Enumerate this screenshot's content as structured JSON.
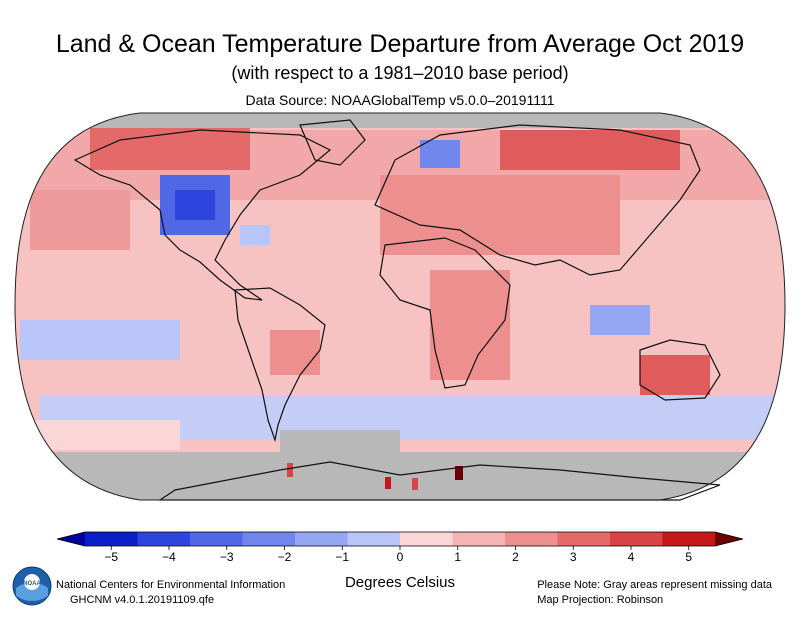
{
  "header": {
    "title": "Land & Ocean Temperature Departure from Average Oct 2019",
    "subtitle": "(with respect to a 1981–2010 base period)",
    "source": "Data Source: NOAAGlobalTemp v5.0.0–20191111"
  },
  "colorbar": {
    "label": "Degrees Celsius",
    "ticks": [
      "−5",
      "−4",
      "−3",
      "−2",
      "−1",
      "0",
      "1",
      "2",
      "3",
      "4",
      "5"
    ],
    "colors": [
      "#0a1fc8",
      "#2d45dc",
      "#5068e6",
      "#7287ee",
      "#95a6f3",
      "#b9c5f8",
      "#fbd6d6",
      "#f5b4b4",
      "#ee8f8f",
      "#e46a6a",
      "#d94444",
      "#c41818"
    ],
    "min_color": "#00009a",
    "max_color": "#6b0000"
  },
  "map_colors": {
    "missing": "#b8b8b8",
    "base_warm": "#f7c2c2",
    "land_outline": "#111111"
  },
  "footer": {
    "left_line1": "National Centers for Environmental Information",
    "left_line2": "GHCNM v4.0.1.20191109.qfe",
    "right_line1": "Please Note: Gray areas represent missing data",
    "right_line2": "Map Projection: Robinson",
    "logo_text": "NOAA"
  }
}
